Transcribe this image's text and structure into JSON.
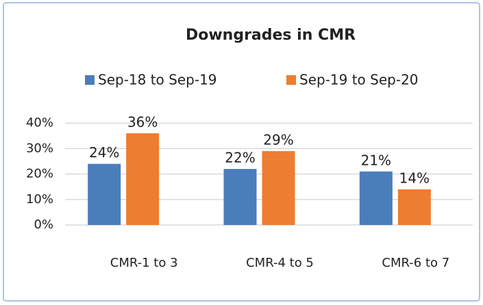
{
  "chart_data": {
    "type": "bar",
    "title": "Downgrades in CMR",
    "categories": [
      "CMR-1 to 3",
      "CMR-4 to 5",
      "CMR-6 to 7"
    ],
    "series": [
      {
        "name": "Sep-18 to Sep-19",
        "color": "#4a7ebb",
        "values": [
          24,
          22,
          21
        ],
        "value_labels": [
          "24%",
          "22%",
          "21%"
        ]
      },
      {
        "name": "Sep-19 to Sep-20",
        "color": "#ed7d31",
        "values": [
          36,
          29,
          14
        ],
        "value_labels": [
          "36%",
          "29%",
          "14%"
        ]
      }
    ],
    "ylim": [
      0,
      40
    ],
    "yticks": [
      {
        "value": 0,
        "label": "0%"
      },
      {
        "value": 10,
        "label": "10%"
      },
      {
        "value": 20,
        "label": "20%"
      },
      {
        "value": 30,
        "label": "30%"
      },
      {
        "value": 40,
        "label": "40%"
      }
    ],
    "grid": true,
    "legend": "top"
  }
}
